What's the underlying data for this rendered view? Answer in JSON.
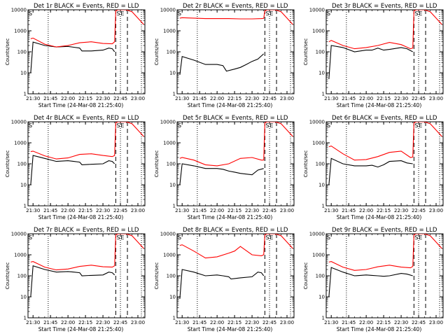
{
  "chart_data": [
    {
      "type": "line",
      "title": "Det 1r BLACK = Events, RED = LLD",
      "ylabel": "Counts/sec",
      "xlabel": "Start Time (24-Mar-08 21:25:40)",
      "x_tick_labels": [
        "21:30",
        "21:45",
        "22:00",
        "22:15",
        "22:30",
        "22:45",
        "23:00"
      ],
      "y_tick_labels": [
        "1",
        "10",
        "100",
        "1000",
        "10000"
      ],
      "y_scale": "log",
      "ylim": [
        1,
        10000
      ],
      "xlim": [
        "21:25:40",
        "23:06"
      ],
      "markers": [
        "S",
        "E"
      ],
      "dashed_lines": [
        "22:41",
        "22:51"
      ],
      "dotted_lines": [
        "21:43",
        "22:45",
        "23:03"
      ],
      "series": [
        {
          "name": "BLACK = Events",
          "color": "#000000",
          "x": [
            "21:28",
            "21:30",
            "21:40",
            "21:50",
            "22:00",
            "22:05",
            "22:10",
            "22:12",
            "22:20",
            "22:30",
            "22:35",
            "22:38",
            "22:40"
          ],
          "values": [
            10,
            290,
            200,
            170,
            180,
            165,
            150,
            110,
            110,
            120,
            150,
            140,
            100
          ]
        },
        {
          "name": "RED = LLD",
          "color": "#ff0000",
          "x": [
            "21:28",
            "21:30",
            "21:40",
            "21:50",
            "22:00",
            "22:10",
            "22:20",
            "22:30",
            "22:38",
            "22:40",
            "22:41",
            "22:43",
            "22:50",
            "22:55",
            "23:00",
            "23:05"
          ],
          "values": [
            420,
            450,
            230,
            170,
            200,
            270,
            300,
            250,
            240,
            300,
            9000,
            10000,
            10000,
            8000,
            4000,
            2000
          ]
        }
      ]
    },
    {
      "type": "line",
      "title": "Det 2r BLACK = Events, RED = LLD",
      "ylabel": "Counts/sec",
      "xlabel": "Start Time (24-Mar-08 21:25:40)",
      "x_tick_labels": [
        "21:30",
        "21:45",
        "22:00",
        "22:15",
        "22:30",
        "22:45",
        "23:00"
      ],
      "y_tick_labels": [
        "1",
        "10",
        "100",
        "1000",
        "10000"
      ],
      "y_scale": "log",
      "ylim": [
        1,
        10000
      ],
      "xlim": [
        "21:25:40",
        "23:06"
      ],
      "markers": [
        "S",
        "E"
      ],
      "dashed_lines": [
        "22:41",
        "22:51"
      ],
      "dotted_lines": [
        "21:43",
        "22:45",
        "23:03"
      ],
      "series": [
        {
          "name": "BLACK = Events",
          "color": "#000000",
          "x": [
            "21:28",
            "21:30",
            "21:40",
            "21:50",
            "22:00",
            "22:05",
            "22:08",
            "22:15",
            "22:20",
            "22:25",
            "22:30",
            "22:35",
            "22:40"
          ],
          "values": [
            8,
            60,
            40,
            25,
            25,
            22,
            12,
            15,
            18,
            25,
            35,
            45,
            80
          ]
        },
        {
          "name": "RED = LLD",
          "color": "#ff0000",
          "x": [
            "21:28",
            "21:30",
            "21:40",
            "21:50",
            "22:00",
            "22:10",
            "22:20",
            "22:30",
            "22:38",
            "22:40",
            "22:41",
            "22:43",
            "22:50",
            "22:55",
            "23:00",
            "23:05"
          ],
          "values": [
            4000,
            4200,
            4000,
            3800,
            3800,
            3800,
            3700,
            3700,
            3800,
            3900,
            9000,
            10000,
            10000,
            8000,
            4000,
            2000
          ]
        }
      ]
    },
    {
      "type": "line",
      "title": "Det 3r BLACK = Events, RED = LLD",
      "ylabel": "Counts/sec",
      "xlabel": "Start Time (24-Mar-08 21:25:40)",
      "x_tick_labels": [
        "21:30",
        "21:45",
        "22:00",
        "22:15",
        "22:30",
        "22:45",
        "23:00"
      ],
      "y_tick_labels": [
        "1",
        "10",
        "100",
        "1000",
        "10000"
      ],
      "y_scale": "log",
      "ylim": [
        1,
        10000
      ],
      "xlim": [
        "21:25:40",
        "23:06"
      ],
      "markers": [
        "S",
        "E"
      ],
      "dashed_lines": [
        "22:41",
        "22:51"
      ],
      "dotted_lines": [
        "21:43",
        "22:45",
        "23:03"
      ],
      "series": [
        {
          "name": "BLACK = Events",
          "color": "#000000",
          "x": [
            "21:28",
            "21:30",
            "21:40",
            "21:50",
            "22:00",
            "22:05",
            "22:10",
            "22:15",
            "22:20",
            "22:30",
            "22:35",
            "22:40"
          ],
          "values": [
            5,
            200,
            160,
            100,
            120,
            120,
            150,
            120,
            130,
            160,
            140,
            100
          ]
        },
        {
          "name": "RED = LLD",
          "color": "#ff0000",
          "x": [
            "21:28",
            "21:30",
            "21:40",
            "21:50",
            "22:00",
            "22:10",
            "22:20",
            "22:30",
            "22:38",
            "22:40",
            "22:41",
            "22:43",
            "22:50",
            "22:55",
            "23:00",
            "23:05"
          ],
          "values": [
            300,
            350,
            200,
            140,
            160,
            200,
            280,
            220,
            140,
            150,
            9000,
            10000,
            10000,
            8000,
            4000,
            2000
          ]
        }
      ]
    },
    {
      "type": "line",
      "title": "Det 4r BLACK = Events, RED = LLD",
      "ylabel": "Counts/sec",
      "xlabel": "Start Time (24-Mar-08 21:25:40)",
      "x_tick_labels": [
        "21:30",
        "21:45",
        "22:00",
        "22:15",
        "22:30",
        "22:45",
        "23:00"
      ],
      "y_tick_labels": [
        "1",
        "10",
        "100",
        "1000",
        "10000"
      ],
      "y_scale": "log",
      "ylim": [
        1,
        10000
      ],
      "xlim": [
        "21:25:40",
        "23:06"
      ],
      "markers": [
        "S",
        "E"
      ],
      "dashed_lines": [
        "22:41",
        "22:51"
      ],
      "dotted_lines": [
        "21:43",
        "22:45",
        "23:03"
      ],
      "series": [
        {
          "name": "BLACK = Events",
          "color": "#000000",
          "x": [
            "21:28",
            "21:30",
            "21:40",
            "21:50",
            "22:00",
            "22:05",
            "22:10",
            "22:12",
            "22:20",
            "22:30",
            "22:35",
            "22:38",
            "22:40"
          ],
          "values": [
            10,
            250,
            180,
            130,
            140,
            130,
            120,
            90,
            95,
            100,
            140,
            130,
            100
          ]
        },
        {
          "name": "RED = LLD",
          "color": "#ff0000",
          "x": [
            "21:28",
            "21:30",
            "21:40",
            "21:50",
            "22:00",
            "22:10",
            "22:20",
            "22:30",
            "22:38",
            "22:40",
            "22:41",
            "22:43",
            "22:50",
            "22:55",
            "23:00",
            "23:05"
          ],
          "values": [
            380,
            400,
            240,
            170,
            190,
            280,
            300,
            250,
            220,
            250,
            9000,
            10000,
            10000,
            8000,
            4000,
            2000
          ]
        }
      ]
    },
    {
      "type": "line",
      "title": "Det 5r BLACK = Events, RED = LLD",
      "ylabel": "Counts/sec",
      "xlabel": "Start Time (24-Mar-08 21:25:40)",
      "x_tick_labels": [
        "21:30",
        "21:45",
        "22:00",
        "22:15",
        "22:30",
        "22:45",
        "23:00"
      ],
      "y_tick_labels": [
        "1",
        "10",
        "100",
        "1000",
        "10000"
      ],
      "y_scale": "log",
      "ylim": [
        1,
        10000
      ],
      "xlim": [
        "21:25:40",
        "23:06"
      ],
      "markers": [
        "S",
        "E"
      ],
      "dashed_lines": [
        "22:41",
        "22:51"
      ],
      "dotted_lines": [
        "21:43",
        "22:45",
        "23:03"
      ],
      "series": [
        {
          "name": "BLACK = Events",
          "color": "#000000",
          "x": [
            "21:28",
            "21:30",
            "21:40",
            "21:50",
            "22:00",
            "22:05",
            "22:10",
            "22:15",
            "22:20",
            "22:30",
            "22:35",
            "22:40"
          ],
          "values": [
            10,
            100,
            80,
            60,
            60,
            55,
            45,
            40,
            35,
            30,
            50,
            60
          ]
        },
        {
          "name": "RED = LLD",
          "color": "#ff0000",
          "x": [
            "21:28",
            "21:30",
            "21:40",
            "21:50",
            "22:00",
            "22:10",
            "22:20",
            "22:30",
            "22:38",
            "22:40",
            "22:41",
            "22:43",
            "22:50",
            "22:55",
            "23:00",
            "23:05"
          ],
          "values": [
            180,
            200,
            150,
            90,
            80,
            100,
            180,
            200,
            150,
            150,
            9000,
            10000,
            10000,
            8000,
            4000,
            2000
          ]
        }
      ]
    },
    {
      "type": "line",
      "title": "Det 6r BLACK = Events, RED = LLD",
      "ylabel": "Counts/sec",
      "xlabel": "Start Time (24-Mar-08 21:25:40)",
      "x_tick_labels": [
        "21:30",
        "21:45",
        "22:00",
        "22:15",
        "22:30",
        "22:45",
        "23:00"
      ],
      "y_tick_labels": [
        "1",
        "10",
        "100",
        "1000",
        "10000"
      ],
      "y_scale": "log",
      "ylim": [
        1,
        10000
      ],
      "xlim": [
        "21:25:40",
        "23:06"
      ],
      "markers": [
        "S",
        "E"
      ],
      "dashed_lines": [
        "22:41",
        "22:51"
      ],
      "dotted_lines": [
        "21:43",
        "22:45",
        "23:03"
      ],
      "series": [
        {
          "name": "BLACK = Events",
          "color": "#000000",
          "x": [
            "21:28",
            "21:30",
            "21:40",
            "21:50",
            "22:00",
            "22:05",
            "22:10",
            "22:15",
            "22:20",
            "22:30",
            "22:35",
            "22:40"
          ],
          "values": [
            10,
            180,
            100,
            80,
            80,
            85,
            70,
            90,
            130,
            140,
            110,
            100
          ]
        },
        {
          "name": "RED = LLD",
          "color": "#ff0000",
          "x": [
            "21:28",
            "21:30",
            "21:40",
            "21:50",
            "22:00",
            "22:10",
            "22:20",
            "22:30",
            "22:38",
            "22:40",
            "22:41",
            "22:43",
            "22:50",
            "22:55",
            "23:00",
            "23:05"
          ],
          "values": [
            650,
            700,
            300,
            150,
            160,
            220,
            350,
            400,
            200,
            210,
            9000,
            10000,
            10000,
            8000,
            4000,
            2000
          ]
        }
      ]
    },
    {
      "type": "line",
      "title": "Det 7r BLACK = Events, RED = LLD",
      "ylabel": "Counts/sec",
      "xlabel": "Start Time (24-Mar-08 21:25:40)",
      "x_tick_labels": [
        "21:30",
        "21:45",
        "22:00",
        "22:15",
        "22:30",
        "22:45",
        "23:00"
      ],
      "y_tick_labels": [
        "1",
        "10",
        "100",
        "1000",
        "10000"
      ],
      "y_scale": "log",
      "ylim": [
        1,
        10000
      ],
      "xlim": [
        "21:25:40",
        "23:06"
      ],
      "markers": [
        "S",
        "E"
      ],
      "dashed_lines": [
        "22:41",
        "22:51"
      ],
      "dotted_lines": [
        "21:43",
        "22:45",
        "23:03"
      ],
      "series": [
        {
          "name": "BLACK = Events",
          "color": "#000000",
          "x": [
            "21:28",
            "21:30",
            "21:40",
            "21:50",
            "22:00",
            "22:05",
            "22:10",
            "22:12",
            "22:20",
            "22:30",
            "22:35",
            "22:38",
            "22:40"
          ],
          "values": [
            10,
            300,
            200,
            150,
            160,
            150,
            140,
            100,
            105,
            110,
            150,
            140,
            110
          ]
        },
        {
          "name": "RED = LLD",
          "color": "#ff0000",
          "x": [
            "21:28",
            "21:30",
            "21:40",
            "21:50",
            "22:00",
            "22:10",
            "22:20",
            "22:30",
            "22:38",
            "22:40",
            "22:41",
            "22:43",
            "22:50",
            "22:55",
            "23:00",
            "23:05"
          ],
          "values": [
            450,
            480,
            260,
            190,
            210,
            280,
            320,
            270,
            260,
            300,
            9000,
            10000,
            10000,
            8000,
            4000,
            2000
          ]
        }
      ]
    },
    {
      "type": "line",
      "title": "Det 8r BLACK = Events, RED = LLD",
      "ylabel": "Counts/sec",
      "xlabel": "Start Time (24-Mar-08 21:25:40)",
      "x_tick_labels": [
        "21:30",
        "21:45",
        "22:00",
        "22:15",
        "22:30",
        "22:45",
        "23:00"
      ],
      "y_tick_labels": [
        "1",
        "10",
        "100",
        "1000",
        "10000"
      ],
      "y_scale": "log",
      "ylim": [
        1,
        10000
      ],
      "xlim": [
        "21:25:40",
        "23:06"
      ],
      "markers": [
        "S",
        "E"
      ],
      "dashed_lines": [
        "22:41",
        "22:51"
      ],
      "dotted_lines": [
        "21:43",
        "22:45",
        "23:03"
      ],
      "series": [
        {
          "name": "BLACK = Events",
          "color": "#000000",
          "x": [
            "21:28",
            "21:30",
            "21:40",
            "21:50",
            "22:00",
            "22:05",
            "22:10",
            "22:12",
            "22:20",
            "22:30",
            "22:35",
            "22:38",
            "22:40"
          ],
          "values": [
            8,
            200,
            150,
            100,
            110,
            100,
            90,
            70,
            80,
            90,
            150,
            140,
            100
          ]
        },
        {
          "name": "RED = LLD",
          "color": "#ff0000",
          "x": [
            "21:28",
            "21:30",
            "21:40",
            "21:50",
            "22:00",
            "22:10",
            "22:15",
            "22:20",
            "22:30",
            "22:38",
            "22:40",
            "22:41",
            "22:43",
            "22:50",
            "22:55",
            "23:00",
            "23:05"
          ],
          "values": [
            2800,
            3000,
            1500,
            700,
            800,
            1200,
            1500,
            2500,
            1000,
            900,
            1000,
            9000,
            10000,
            10000,
            8000,
            4000,
            2000
          ]
        }
      ]
    },
    {
      "type": "line",
      "title": "Det 9r BLACK = Events, RED = LLD",
      "ylabel": "Counts/sec",
      "xlabel": "Start Time (24-Mar-08 21:25:40)",
      "x_tick_labels": [
        "21:30",
        "21:45",
        "22:00",
        "22:15",
        "22:30",
        "22:45",
        "23:00"
      ],
      "y_tick_labels": [
        "1",
        "10",
        "100",
        "1000",
        "10000"
      ],
      "y_scale": "log",
      "ylim": [
        1,
        10000
      ],
      "xlim": [
        "21:25:40",
        "23:06"
      ],
      "markers": [
        "S",
        "E"
      ],
      "dashed_lines": [
        "22:41",
        "22:51"
      ],
      "dotted_lines": [
        "21:43",
        "22:45",
        "23:03"
      ],
      "series": [
        {
          "name": "BLACK = Events",
          "color": "#000000",
          "x": [
            "21:28",
            "21:30",
            "21:40",
            "21:50",
            "22:00",
            "22:05",
            "22:10",
            "22:15",
            "22:20",
            "22:30",
            "22:35",
            "22:40"
          ],
          "values": [
            10,
            250,
            150,
            100,
            110,
            105,
            100,
            95,
            100,
            130,
            120,
            100
          ]
        },
        {
          "name": "RED = LLD",
          "color": "#ff0000",
          "x": [
            "21:28",
            "21:30",
            "21:40",
            "21:50",
            "22:00",
            "22:10",
            "22:20",
            "22:30",
            "22:38",
            "22:40",
            "22:41",
            "22:43",
            "22:50",
            "22:55",
            "23:00",
            "23:05"
          ],
          "values": [
            450,
            480,
            260,
            180,
            200,
            270,
            320,
            260,
            240,
            280,
            9000,
            10000,
            10000,
            8000,
            4000,
            2000
          ]
        }
      ]
    }
  ]
}
